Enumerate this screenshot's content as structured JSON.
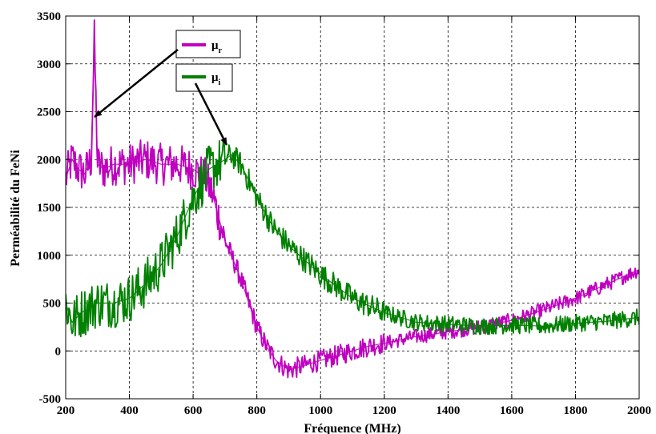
{
  "chart_data": {
    "type": "line",
    "xlabel": "Fréquence (MHz)",
    "ylabel": "Perméabilité du FeNi",
    "xlim": [
      200,
      2000
    ],
    "ylim": [
      -500,
      3500
    ],
    "x_ticks": [
      200,
      400,
      600,
      800,
      1000,
      1200,
      1400,
      1600,
      1800,
      2000
    ],
    "y_ticks": [
      -500,
      0,
      500,
      1000,
      1500,
      2000,
      2500,
      3000,
      3500
    ],
    "grid": true,
    "legend_position": "top-center",
    "series": [
      {
        "name": "μr",
        "legend_base": "μ",
        "legend_sub": "r",
        "color": "#bf00bf",
        "x": [
          200,
          220,
          240,
          260,
          280,
          290,
          300,
          320,
          350,
          400,
          450,
          500,
          550,
          600,
          620,
          640,
          660,
          680,
          700,
          720,
          750,
          780,
          800,
          830,
          860,
          900,
          950,
          1000,
          1050,
          1100,
          1150,
          1200,
          1300,
          1400,
          1500,
          1600,
          1700,
          1800,
          1900,
          2000
        ],
        "y": [
          1800,
          2000,
          1900,
          1850,
          2000,
          3250,
          1950,
          1900,
          1950,
          1950,
          2000,
          1950,
          1950,
          1900,
          1850,
          1800,
          1650,
          1400,
          1150,
          1000,
          750,
          450,
          250,
          50,
          -100,
          -200,
          -150,
          -100,
          -50,
          0,
          50,
          80,
          150,
          200,
          250,
          320,
          430,
          550,
          700,
          850
        ],
        "noise": 220
      },
      {
        "name": "μi",
        "legend_base": "μ",
        "legend_sub": "i",
        "color": "#008000",
        "x": [
          200,
          220,
          250,
          300,
          350,
          400,
          450,
          500,
          550,
          600,
          650,
          700,
          720,
          750,
          800,
          850,
          900,
          950,
          1000,
          1100,
          1200,
          1300,
          1400,
          1500,
          1600,
          1700,
          1800,
          1900,
          2000
        ],
        "y": [
          500,
          300,
          400,
          500,
          500,
          550,
          700,
          900,
          1200,
          1600,
          1900,
          2000,
          2050,
          1950,
          1600,
          1300,
          1100,
          950,
          800,
          550,
          400,
          300,
          280,
          260,
          270,
          260,
          290,
          310,
          350
        ],
        "noise": 260
      }
    ]
  }
}
